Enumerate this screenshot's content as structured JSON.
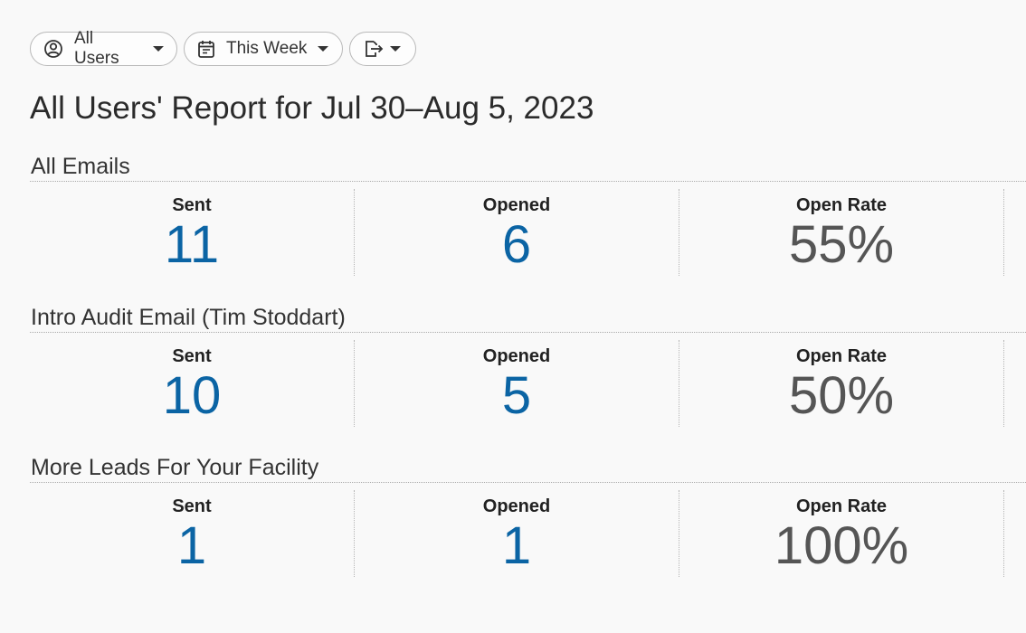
{
  "toolbar": {
    "users_label": "All Users",
    "period_label": "This Week",
    "icons": {
      "users": "user-circle-icon",
      "period": "calendar-icon",
      "export": "export-icon"
    }
  },
  "report_title": "All Users' Report for Jul 30–Aug 5, 2023",
  "sections": [
    {
      "title": "All Emails",
      "metrics": [
        {
          "label": "Sent",
          "value": "11"
        },
        {
          "label": "Opened",
          "value": "6"
        },
        {
          "label": "Open Rate",
          "value": "55%"
        }
      ]
    },
    {
      "title": "Intro Audit Email (Tim Stoddart)",
      "metrics": [
        {
          "label": "Sent",
          "value": "10"
        },
        {
          "label": "Opened",
          "value": "5"
        },
        {
          "label": "Open Rate",
          "value": "50%"
        }
      ]
    },
    {
      "title": "More Leads For Your Facility",
      "metrics": [
        {
          "label": "Sent",
          "value": "1"
        },
        {
          "label": "Opened",
          "value": "1"
        },
        {
          "label": "Open Rate",
          "value": "100%"
        }
      ]
    }
  ],
  "colors": {
    "count_value": "#0b64a4",
    "rate_value": "#555555"
  }
}
